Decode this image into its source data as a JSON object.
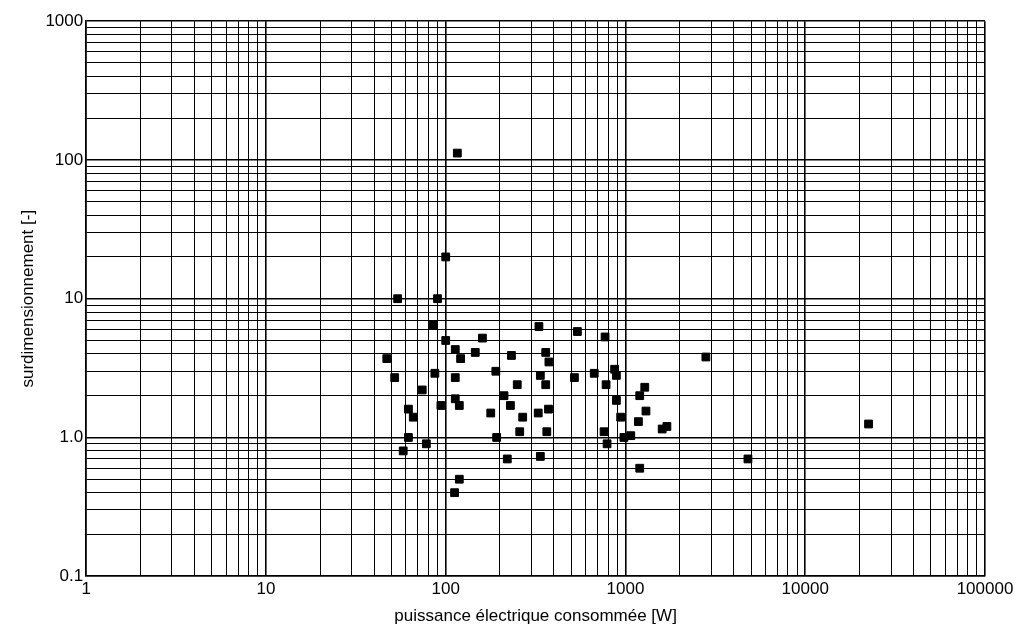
{
  "chart_data": {
    "type": "scatter",
    "xlabel": "puissance électrique consommée [W]",
    "ylabel": "surdimensionnement [-]",
    "log": "xy",
    "grid": true,
    "marker": "square",
    "legend": false,
    "xlim": [
      1,
      100000
    ],
    "xticks": [
      1,
      10,
      100,
      1000,
      10000,
      100000
    ],
    "ylim": [
      0.1,
      1000
    ],
    "yticks": [
      {
        "value": 0.1,
        "label": "0.1"
      },
      {
        "value": 1,
        "label": "1.0"
      },
      10,
      100,
      1000
    ],
    "series": [
      {
        "color": "#000000",
        "x": [
          116,
          100,
          54,
          90,
          85,
          100,
          113,
          121,
          160,
          146,
          232,
          330,
          360,
          375,
          47,
          52,
          87,
          113,
          74,
          190,
          250,
          336,
          360,
          113,
          119,
          94,
          62,
          66,
          178,
          211,
          229,
          268,
          327,
          373,
          62,
          58,
          78,
          192,
          258,
          365,
          220,
          336,
          119,
          112,
          540,
          770,
          2800,
          520,
          670,
          870,
          890,
          780,
          1280,
          1200,
          890,
          940,
          1300,
          1180,
          1700,
          1600,
          760,
          980,
          1070,
          790,
          1200,
          22500,
          4800
        ],
        "values": [
          112,
          20,
          10,
          10,
          6.5,
          5,
          4.3,
          3.7,
          5.2,
          4.1,
          3.9,
          6.3,
          4.1,
          3.5,
          3.7,
          2.7,
          2.9,
          2.7,
          2.2,
          3,
          2.4,
          2.8,
          2.4,
          1.9,
          1.7,
          1.7,
          1.6,
          1.4,
          1.5,
          2,
          1.7,
          1.4,
          1.5,
          1.6,
          1,
          0.8,
          0.9,
          1,
          1.1,
          1.1,
          0.7,
          0.73,
          0.5,
          0.4,
          5.8,
          5.3,
          3.8,
          2.7,
          2.9,
          3.1,
          2.8,
          2.4,
          2.3,
          2,
          1.85,
          1.4,
          1.55,
          1.3,
          1.2,
          1.15,
          1.1,
          1,
          1.03,
          0.9,
          0.6,
          1.25,
          0.7
        ]
      }
    ]
  }
}
